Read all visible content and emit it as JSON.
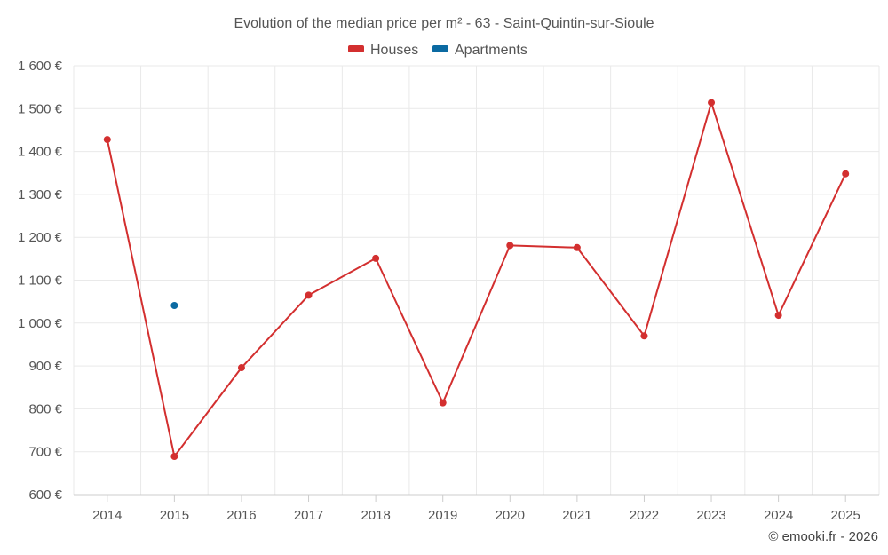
{
  "chart_data": {
    "type": "line",
    "title": "Evolution of the median price per m² - 63 - Saint-Quintin-sur-Sioule",
    "categories": [
      "2014",
      "2015",
      "2016",
      "2017",
      "2018",
      "2019",
      "2020",
      "2021",
      "2022",
      "2023",
      "2024",
      "2025"
    ],
    "series": [
      {
        "name": "Houses",
        "color": "#d32f2f",
        "values": [
          1428,
          689,
          896,
          1065,
          1151,
          814,
          1181,
          1176,
          970,
          1514,
          1018,
          1348
        ]
      },
      {
        "name": "Apartments",
        "color": "#0b6aa2",
        "values": [
          null,
          1041,
          null,
          null,
          null,
          null,
          null,
          null,
          null,
          null,
          null,
          null
        ]
      }
    ],
    "ylim": [
      600,
      1600
    ],
    "yticks": [
      600,
      700,
      800,
      900,
      1000,
      1100,
      1200,
      1300,
      1400,
      1500,
      1600
    ],
    "ytick_labels": [
      "600 €",
      "700 €",
      "800 €",
      "900 €",
      "1 000 €",
      "1 100 €",
      "1 200 €",
      "1 300 €",
      "1 400 €",
      "1 500 €",
      "1 600 €"
    ],
    "grid": true,
    "legend_position": "top-center",
    "xlabel": "",
    "ylabel": ""
  },
  "credit": "© emooki.fr - 2026"
}
